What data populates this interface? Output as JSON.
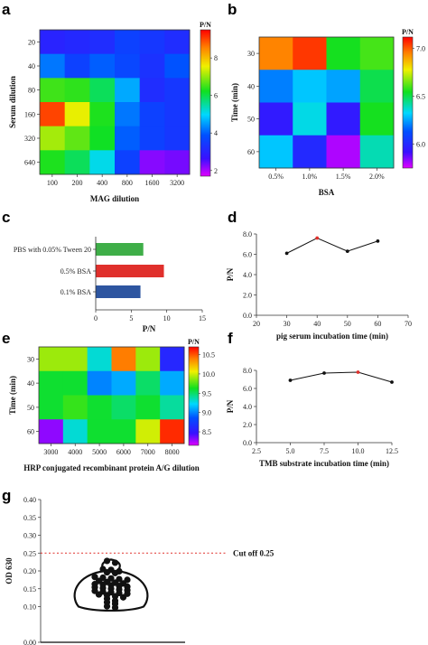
{
  "panels": {
    "a": {
      "label": "a"
    },
    "b": {
      "label": "b"
    },
    "c": {
      "label": "c"
    },
    "d": {
      "label": "d"
    },
    "e": {
      "label": "e"
    },
    "f": {
      "label": "f"
    },
    "g": {
      "label": "g"
    }
  },
  "chart_data": [
    {
      "id": "a",
      "type": "heatmap",
      "xlabel": "MAG dilution",
      "ylabel": "Serum dilution",
      "x_categories": [
        "100",
        "200",
        "400",
        "800",
        "1600",
        "3200"
      ],
      "y_categories": [
        "20",
        "40",
        "80",
        "160",
        "320",
        "640"
      ],
      "values": [
        [
          3.0,
          3.1,
          3.2,
          3.6,
          3.4,
          3.2
        ],
        [
          4.2,
          3.6,
          4.0,
          3.7,
          3.3,
          3.9
        ],
        [
          6.5,
          6.4,
          5.9,
          4.6,
          3.2,
          3.4
        ],
        [
          9.0,
          7.5,
          6.3,
          4.2,
          3.6,
          3.4
        ],
        [
          7.1,
          6.7,
          6.2,
          4.0,
          3.6,
          3.4
        ],
        [
          6.3,
          5.9,
          5.1,
          3.6,
          2.2,
          2.3
        ]
      ],
      "colorbar": {
        "title": "P/N",
        "min": 1.7,
        "max": 9.5,
        "ticks": [
          2,
          4,
          6,
          8
        ]
      }
    },
    {
      "id": "b",
      "type": "heatmap",
      "xlabel": "BSA",
      "ylabel": "Time (min)",
      "x_categories": [
        "0.5%",
        "1.0%",
        "1.5%",
        "2.0%"
      ],
      "y_categories": [
        "30",
        "40",
        "50",
        "60"
      ],
      "values": [
        [
          6.95,
          7.05,
          6.55,
          6.6
        ],
        [
          6.2,
          6.3,
          6.25,
          6.5
        ],
        [
          5.95,
          6.35,
          5.95,
          6.55
        ],
        [
          6.3,
          6.0,
          5.8,
          6.4
        ]
      ],
      "colorbar": {
        "title": "P/N",
        "min": 5.75,
        "max": 7.12,
        "ticks": [
          "6.0",
          "6.5",
          "7.0"
        ]
      }
    },
    {
      "id": "c",
      "type": "bar",
      "orientation": "horizontal",
      "xlabel": "P/N",
      "categories": [
        "PBS with 0.05% Tween 20",
        "0.5% BSA",
        "0.1% BSA"
      ],
      "values": [
        6.7,
        9.6,
        6.3
      ],
      "colors": [
        "#3fae48",
        "#e0302c",
        "#2d55a0"
      ],
      "xlim": [
        0,
        15
      ],
      "xticks": [
        0,
        5,
        10,
        15
      ]
    },
    {
      "id": "d",
      "type": "line",
      "xlabel": "pig serum incubation time (min)",
      "ylabel": "P/N",
      "x": [
        30,
        40,
        50,
        60
      ],
      "y": [
        6.1,
        7.6,
        6.3,
        7.3
      ],
      "highlight_index": 1,
      "xlim": [
        20,
        70
      ],
      "ylim": [
        0,
        8
      ],
      "xticks": [
        20,
        30,
        40,
        50,
        60,
        70
      ],
      "yticks": [
        "0.0",
        "2.0",
        "4.0",
        "6.0",
        "8.0"
      ]
    },
    {
      "id": "e",
      "type": "heatmap",
      "xlabel": "HRP conjugated recombinant protein A/G dilution",
      "ylabel": "Time (min)",
      "x_categories": [
        "3000",
        "4000",
        "5000",
        "6000",
        "7000",
        "8000"
      ],
      "y_categories": [
        "30",
        "40",
        "50",
        "60"
      ],
      "values": [
        [
          9.9,
          9.9,
          9.3,
          10.4,
          9.9,
          8.6
        ],
        [
          9.6,
          9.6,
          9.0,
          9.1,
          9.5,
          9.1
        ],
        [
          9.6,
          9.7,
          9.6,
          9.5,
          9.6,
          9.4
        ],
        [
          8.3,
          9.3,
          9.6,
          9.6,
          10.0,
          10.6
        ]
      ],
      "colorbar": {
        "title": "P/N",
        "min": 8.15,
        "max": 10.7,
        "ticks": [
          "8.5",
          "9.0",
          "9.5",
          "10.0",
          "10.5"
        ]
      }
    },
    {
      "id": "f",
      "type": "line",
      "xlabel": "TMB substrate incubation time (min)",
      "ylabel": "P/N",
      "x": [
        5.0,
        7.5,
        10.0,
        12.5
      ],
      "y": [
        6.9,
        7.7,
        7.8,
        6.7
      ],
      "highlight_index": 2,
      "xlim": [
        2.5,
        12.5
      ],
      "ylim": [
        0,
        8
      ],
      "xticks": [
        "2.5",
        "5.0",
        "7.5",
        "10.0",
        "12.5"
      ],
      "yticks": [
        "0.0",
        "2.0",
        "4.0",
        "6.0",
        "8.0"
      ]
    },
    {
      "id": "g",
      "type": "scatter",
      "ylabel": "OD 630",
      "ylim": [
        0,
        0.4
      ],
      "yticks": [
        "0.00",
        "0.10",
        "0.15",
        "0.20",
        "0.25",
        "0.30",
        "0.35",
        "0.40"
      ],
      "cutoff": {
        "value": 0.25,
        "label": "Cut off 0.25"
      },
      "points": [
        0.228,
        0.223,
        0.205,
        0.203,
        0.199,
        0.196,
        0.194,
        0.183,
        0.181,
        0.179,
        0.177,
        0.175,
        0.172,
        0.169,
        0.167,
        0.165,
        0.163,
        0.162,
        0.16,
        0.158,
        0.156,
        0.154,
        0.152,
        0.15,
        0.148,
        0.146,
        0.144,
        0.142,
        0.14,
        0.138,
        0.136,
        0.134,
        0.132,
        0.129,
        0.126,
        0.122,
        0.116,
        0.112,
        0.108,
        0.101,
        0.097
      ]
    }
  ]
}
